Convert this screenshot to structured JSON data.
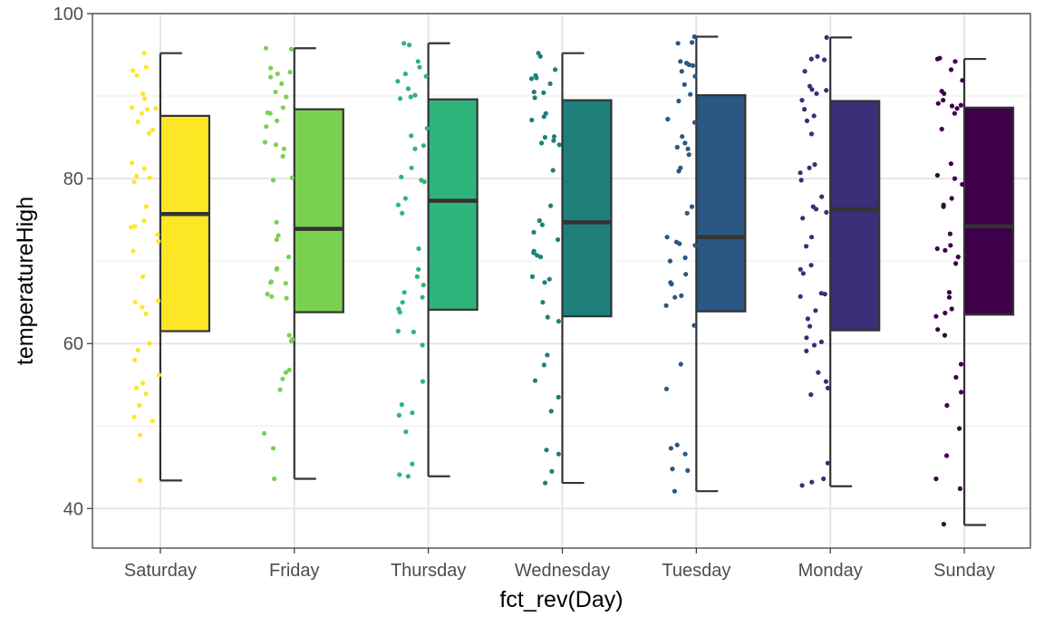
{
  "chart_data": {
    "type": "boxplot",
    "xlabel": "fct_rev(Day)",
    "ylabel": "temperatureHigh",
    "ylim": [
      35.2,
      100
    ],
    "yticks": [
      40,
      60,
      80,
      100
    ],
    "grid": true,
    "legend": "none",
    "categories": [
      "Saturday",
      "Friday",
      "Thursday",
      "Wednesday",
      "Tuesday",
      "Monday",
      "Sunday"
    ],
    "colors": [
      "#fde725",
      "#7ad151",
      "#2fb47c",
      "#1f7f7b",
      "#2a5783",
      "#3b2d78",
      "#3d0049"
    ],
    "boxes": [
      {
        "min": 43.4,
        "q1": 61.5,
        "median": 75.7,
        "q3": 87.6,
        "max": 95.2
      },
      {
        "min": 43.6,
        "q1": 63.8,
        "median": 73.9,
        "q3": 88.4,
        "max": 95.8
      },
      {
        "min": 43.9,
        "q1": 64.1,
        "median": 77.3,
        "q3": 89.6,
        "max": 96.4
      },
      {
        "min": 43.1,
        "q1": 63.3,
        "median": 74.7,
        "q3": 89.5,
        "max": 95.2
      },
      {
        "min": 42.1,
        "q1": 63.9,
        "median": 72.9,
        "q3": 90.1,
        "max": 97.2
      },
      {
        "min": 42.7,
        "q1": 61.6,
        "median": 76.3,
        "q3": 89.4,
        "max": 97.1
      },
      {
        "min": 38.0,
        "q1": 63.5,
        "median": 74.2,
        "q3": 88.6,
        "max": 94.5
      }
    ],
    "points": [
      [
        95.2,
        93.5,
        93.1,
        92.5,
        90.3,
        89.7,
        88.6,
        88.5,
        88.4,
        87.9,
        86.9,
        85.9,
        85.5,
        81.9,
        81.2,
        80.3,
        80.1,
        79.6,
        76.6,
        74.9,
        74.2,
        74.1,
        73.2,
        72.4,
        71.2,
        68.1,
        65.2,
        65.0,
        64.4,
        63.6,
        60.0,
        59.2,
        58.0,
        56.2,
        55.2,
        54.6,
        53.9,
        52.5,
        51.1,
        50.6,
        48.9,
        43.4
      ],
      [
        95.8,
        95.7,
        93.4,
        92.9,
        92.7,
        92.3,
        91.5,
        90.5,
        89.9,
        88.6,
        88.0,
        87.9,
        87.0,
        86.3,
        84.4,
        84.1,
        83.6,
        82.7,
        80.1,
        79.8,
        74.7,
        73.1,
        72.6,
        70.5,
        69.1,
        69.0,
        67.5,
        67.4,
        67.3,
        66.0,
        65.7,
        65.5,
        61.0,
        60.5,
        60.3,
        56.8,
        56.5,
        55.7,
        54.4,
        49.1,
        47.3,
        43.6
      ],
      [
        96.4,
        96.2,
        94.2,
        93.5,
        92.7,
        92.4,
        91.8,
        90.9,
        90.1,
        89.9,
        89.7,
        86.1,
        85.2,
        84.0,
        83.6,
        81.3,
        80.2,
        79.8,
        79.6,
        77.6,
        76.8,
        75.8,
        71.5,
        69.0,
        68.1,
        67.1,
        66.2,
        65.6,
        65.0,
        64.2,
        63.8,
        61.5,
        61.4,
        59.8,
        55.4,
        52.6,
        51.6,
        51.3,
        49.3,
        45.4,
        44.1,
        43.9
      ],
      [
        95.2,
        94.8,
        93.2,
        92.5,
        92.2,
        92.1,
        91.5,
        90.5,
        90.4,
        89.8,
        87.9,
        87.5,
        87.1,
        85.1,
        85.0,
        84.6,
        84.3,
        84.1,
        81.0,
        76.7,
        74.9,
        74.4,
        73.5,
        72.6,
        71.2,
        71.0,
        70.7,
        70.5,
        68.1,
        67.8,
        67.4,
        65.0,
        63.2,
        62.7,
        58.6,
        57.4,
        55.5,
        53.5,
        51.8,
        47.1,
        46.6,
        44.5,
        43.1
      ],
      [
        97.2,
        96.5,
        96.4,
        94.2,
        94.0,
        93.8,
        93.7,
        93.0,
        92.4,
        91.4,
        90.2,
        89.4,
        87.2,
        86.8,
        85.1,
        84.3,
        83.8,
        83.6,
        82.9,
        81.3,
        80.9,
        76.6,
        75.8,
        72.9,
        72.3,
        72.1,
        71.9,
        70.4,
        70.0,
        68.4,
        67.4,
        67.2,
        65.8,
        65.6,
        64.6,
        62.2,
        57.5,
        54.5,
        47.7,
        47.3,
        46.6,
        44.8,
        44.6,
        42.1
      ],
      [
        97.1,
        94.8,
        94.5,
        94.4,
        93.0,
        91.2,
        90.8,
        90.7,
        90.3,
        89.5,
        88.4,
        87.6,
        87.0,
        85.4,
        81.7,
        81.3,
        80.7,
        79.8,
        77.8,
        76.6,
        76.3,
        75.9,
        75.2,
        72.9,
        71.8,
        69.5,
        69.0,
        68.5,
        66.1,
        66.0,
        65.7,
        64.0,
        63.0,
        62.1,
        60.7,
        60.2,
        59.8,
        59.1,
        56.5,
        55.4,
        54.6,
        53.8,
        45.5,
        43.6,
        43.2,
        42.8
      ],
      [
        94.6,
        94.5,
        94.2,
        93.2,
        91.9,
        90.6,
        90.3,
        89.5,
        89.1,
        88.9,
        88.8,
        88.5,
        87.9,
        86.0,
        81.8,
        80.4,
        80.0,
        79.3,
        77.6,
        76.8,
        76.6,
        73.3,
        71.9,
        71.5,
        71.3,
        70.5,
        69.7,
        66.2,
        65.6,
        64.2,
        63.7,
        63.3,
        61.7,
        61.0,
        57.5,
        55.9,
        54.1,
        52.5,
        49.7,
        46.4,
        43.6,
        42.4,
        38.1
      ]
    ]
  }
}
